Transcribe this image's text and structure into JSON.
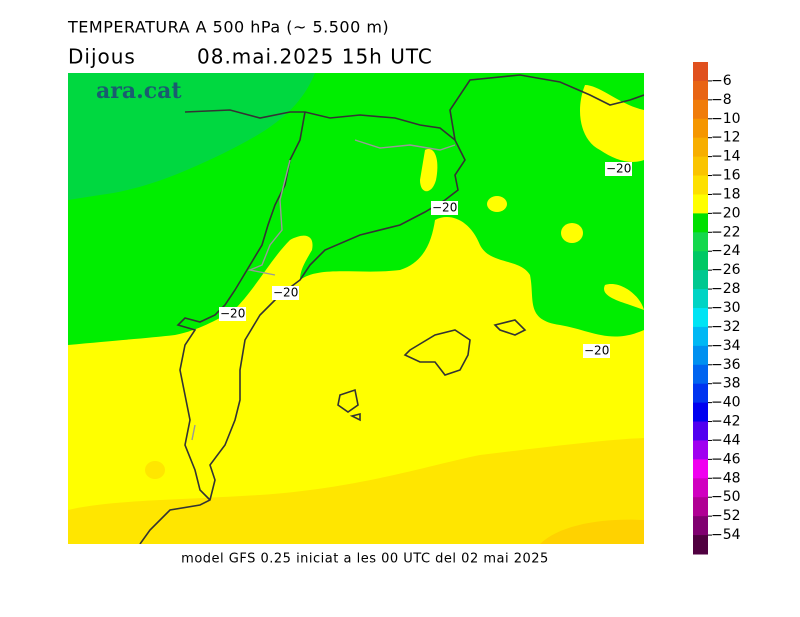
{
  "header": {
    "title": "TEMPERATURA A 500 hPa (~ 5.500 m)",
    "day": "Dijous",
    "datetime": "08.mai.2025 15h UTC"
  },
  "logo": "ara.cat",
  "footer": "model GFS 0.25 iniciat a les 00 UTC del 02 mai 2025",
  "contour_labels": [
    "−20",
    "−20",
    "−20",
    "−20",
    "−20"
  ],
  "colorbar": {
    "labels": [
      "−6",
      "−8",
      "−10",
      "−12",
      "−14",
      "−16",
      "−18",
      "−20",
      "−22",
      "−24",
      "−26",
      "−28",
      "−30",
      "−32",
      "−34",
      "−36",
      "−38",
      "−40",
      "−42",
      "−44",
      "−46",
      "−48",
      "−50",
      "−52",
      "−54"
    ],
    "colors": [
      "#e0501e",
      "#e86414",
      "#f07c0a",
      "#f59600",
      "#f7ae00",
      "#fac400",
      "#fde000",
      "#ffff00",
      "#00e000",
      "#14d84c",
      "#00c864",
      "#00c890",
      "#00d4c4",
      "#00e4f4",
      "#00b8f4",
      "#0090f0",
      "#0064f0",
      "#0034f0",
      "#0000f0",
      "#5000f0",
      "#a000f0",
      "#f000f0",
      "#d000c0",
      "#b00094",
      "#800070",
      "#500040"
    ]
  }
}
